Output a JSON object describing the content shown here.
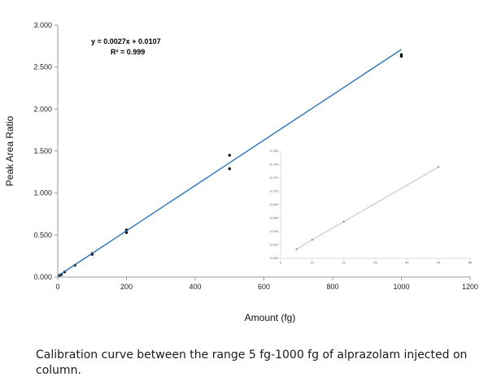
{
  "chart_data": [
    {
      "type": "scatter",
      "title": "",
      "xlabel": "Amount (fg)",
      "ylabel": "Peak Area Ratio",
      "xlim": [
        0,
        1200
      ],
      "ylim": [
        0,
        3
      ],
      "xticks": [
        "0",
        "200",
        "400",
        "600",
        "800",
        "1000",
        "1200"
      ],
      "yticks": [
        "0.000",
        "0.500",
        "1.000",
        "1.500",
        "2.000",
        "2.500",
        "3.000"
      ],
      "grid": false,
      "legend": "none",
      "series": [
        {
          "kind": "points",
          "x": [
            5,
            10,
            20,
            50,
            100,
            100,
            200,
            200,
            500,
            500,
            1000,
            1000
          ],
          "y": [
            0.02,
            0.03,
            0.06,
            0.14,
            0.27,
            0.28,
            0.53,
            0.56,
            1.45,
            1.29,
            2.63,
            2.65
          ],
          "color": "#000000"
        },
        {
          "kind": "trendline",
          "slope": 0.0027,
          "intercept": 0.0107,
          "x_range": [
            0,
            1000
          ],
          "color": "#2e75b6"
        }
      ],
      "annotations": {
        "equation": "y = 0.0027x + 0.0107",
        "r_squared": "R² = 0.999"
      }
    },
    {
      "type": "line",
      "title": "",
      "xlabel": "",
      "ylabel": "",
      "xlim": [
        0,
        60
      ],
      "ylim": [
        0,
        0.16
      ],
      "xticks": [
        "0",
        "10",
        "20",
        "30",
        "40",
        "50",
        "60"
      ],
      "yticks": [
        "0.000",
        "0.020",
        "0.040",
        "0.060",
        "0.080",
        "0.100",
        "0.120",
        "0.140",
        "0.160"
      ],
      "grid": false,
      "legend": "none",
      "series": [
        {
          "kind": "points-with-line",
          "x": [
            5,
            10,
            20,
            50
          ],
          "y": [
            0.0135,
            0.0277,
            0.0547,
            0.1363
          ],
          "color": "#555555"
        }
      ]
    }
  ],
  "caption": "Calibration curve between the range 5 fg-1000 fg of alprazolam injected on column.",
  "colors": {
    "trendline": "#2e75b6",
    "axis": "#9a9a9a",
    "points": "#000000"
  }
}
